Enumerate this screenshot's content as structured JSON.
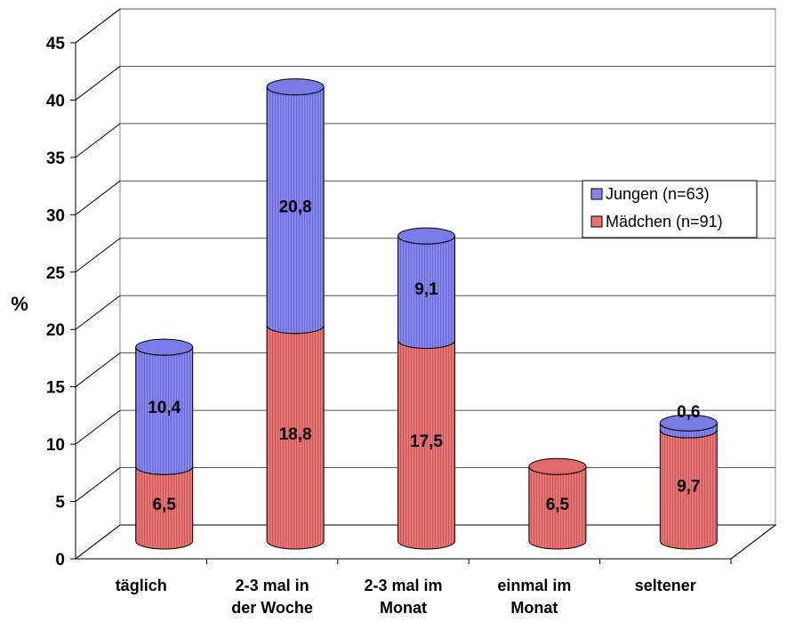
{
  "chart_data": {
    "type": "bar",
    "stacked": true,
    "three_d": true,
    "ylabel": "%",
    "ylim": [
      0,
      45
    ],
    "yticks": [
      0,
      5,
      10,
      15,
      20,
      25,
      30,
      35,
      40,
      45
    ],
    "grid": true,
    "legend_position": "right",
    "categories": [
      [
        "täglich"
      ],
      [
        "2-3 mal in",
        "der Woche"
      ],
      [
        "2-3 mal im",
        "Monat"
      ],
      [
        "einmal im",
        "Monat"
      ],
      [
        "seltener"
      ]
    ],
    "series": [
      {
        "name": "Mädchen (n=91)",
        "color": "#e87373",
        "values": [
          6.5,
          18.8,
          17.5,
          6.5,
          9.7
        ],
        "labels": [
          "6,5",
          "18,8",
          "17,5",
          "6,5",
          "9,7"
        ]
      },
      {
        "name": "Jungen (n=63)",
        "color": "#8585ee",
        "values": [
          10.4,
          20.8,
          9.1,
          null,
          0.6
        ],
        "labels": [
          "10,4",
          "20,8",
          "9,1",
          "",
          "0,6"
        ]
      }
    ]
  }
}
